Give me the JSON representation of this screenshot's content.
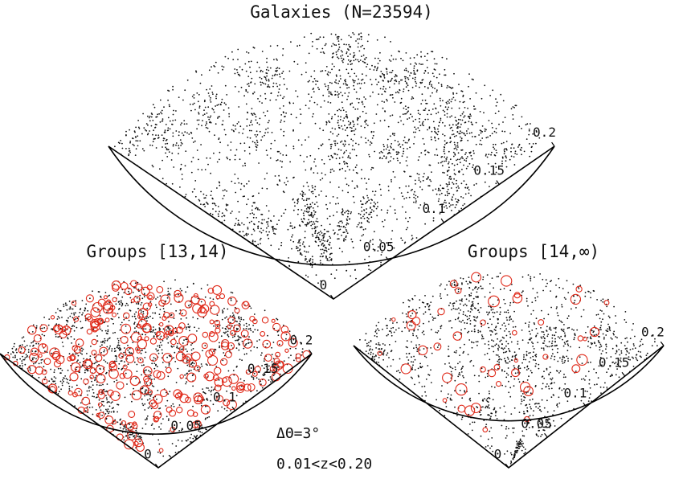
{
  "chart_data": [
    {
      "type": "scatter",
      "panel": "galaxies",
      "title": "Galaxies (N=23594)",
      "n_galaxies": 23594,
      "radial_axis": "z",
      "zlim": [
        0,
        0.2
      ],
      "tick_values": [
        0,
        0.05,
        0.1,
        0.15,
        0.2
      ],
      "tick_labels": [
        "0",
        "0.05",
        "0.1",
        "0.15",
        "0.2"
      ],
      "marker_color": "#111111"
    },
    {
      "type": "scatter",
      "panel": "groups_13_14",
      "title": "Groups [13,14)",
      "radial_axis": "z",
      "zlim": [
        0,
        0.2
      ],
      "tick_values": [
        0,
        0.05,
        0.1,
        0.15,
        0.2
      ],
      "tick_labels": [
        "0",
        "0.05",
        "0.1",
        "0.15",
        "0.2"
      ],
      "marker_color": "#111111",
      "overlay_color": "#e02a1a"
    },
    {
      "type": "scatter",
      "panel": "groups_14_inf",
      "title": "Groups [14,∞)",
      "radial_axis": "z",
      "zlim": [
        0,
        0.2
      ],
      "tick_values": [
        0,
        0.05,
        0.1,
        0.15,
        0.2
      ],
      "tick_labels": [
        "0",
        "0.05",
        "0.1",
        "0.15",
        "0.2"
      ],
      "marker_color": "#111111",
      "overlay_color": "#e02a1a"
    }
  ],
  "annotations": {
    "delta_theta": "ΔΘ=3°",
    "redshift_range": "0.01<z<0.20"
  }
}
